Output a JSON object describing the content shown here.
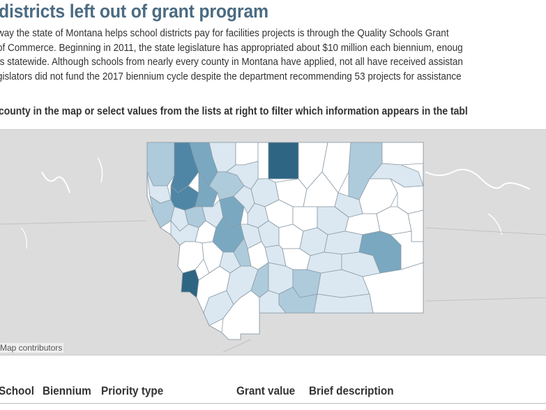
{
  "header": {
    "title": "districts left out of grant program"
  },
  "intro": {
    "lines": [
      "way the state of Montana helps school districts pay for facilities projects is through the Quality Schools Grant",
      "of Commerce. Beginning in 2011, the state legislature has appropriated about $10 million each biennium, enoug",
      "ts statewide. Although schools from nearly every county in Montana have applied, not all have received assistan",
      "gislators did not fund the 2017 biennium cycle despite the department recommending 53 projects for assistance"
    ]
  },
  "instruction": "county in the map or select values from the lists at right to filter which information appears in the tabl",
  "map": {
    "attribution": "Map contributors",
    "colors": {
      "ocean": "#e4e4e4",
      "land": "#d9d9d9",
      "border": "#c8c8c8",
      "county_stroke": "#8a9aa6",
      "shade_0": "#ffffff",
      "shade_1": "#dbe8f1",
      "shade_2": "#aecbdc",
      "shade_3": "#7aa8c1",
      "shade_4": "#4f86a5",
      "shade_5": "#2d6583"
    }
  },
  "table": {
    "columns": {
      "school": "School",
      "biennium": "Biennium",
      "priority": "Priority type",
      "grant": "Grant value",
      "description": "Brief description"
    }
  }
}
